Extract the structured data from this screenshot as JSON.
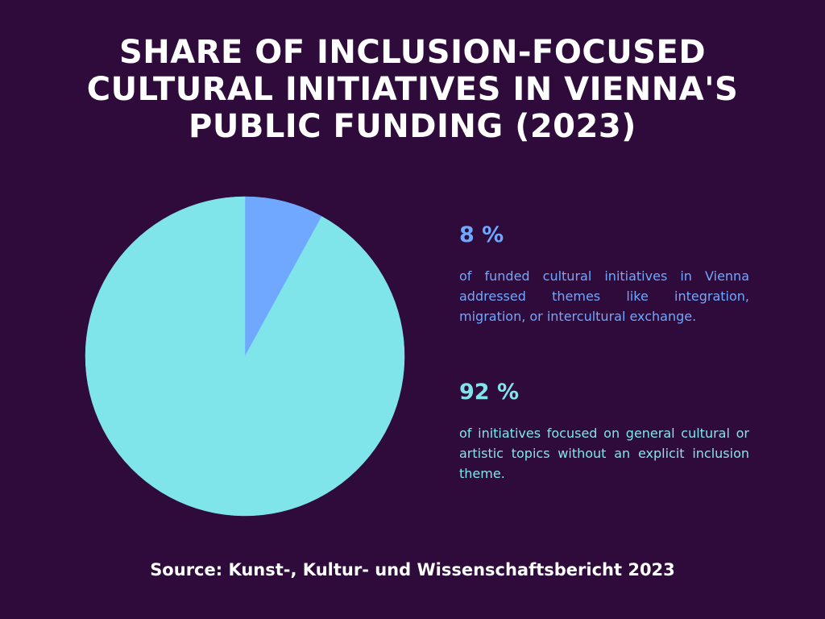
{
  "colors": {
    "background": "#2e0b3a",
    "inclusion": "#6fa8fe",
    "general": "#80e5ea",
    "text": "#ffffff"
  },
  "chart_data": {
    "type": "pie",
    "title": "SHARE OF INCLUSION-FOCUSED CULTURAL INITIATIVES IN VIENNA'S PUBLIC FUNDING (2023)",
    "slices": [
      {
        "value": 8,
        "color": "#6fa8fe"
      },
      {
        "value": 92,
        "color": "#80e5ea"
      }
    ],
    "annotations": [
      {
        "value_label": "8 %",
        "description": "of funded cultural initiatives  in Vienna addressed themes like integration, migration, or intercultural exchange."
      },
      {
        "value_label": "92 %",
        "description": "of initiatives focused on general cultural or artistic topics without an explicit inclusion theme."
      }
    ]
  },
  "source": "Source: Kunst-, Kultur- und Wissenschaftsbericht 2023"
}
